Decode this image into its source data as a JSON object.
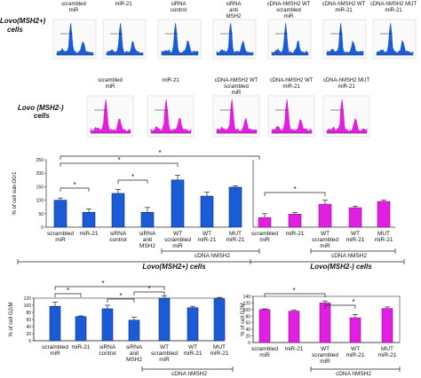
{
  "colors": {
    "blue": "#1a5bd6",
    "blue_dark": "#0b2a8a",
    "magenta": "#e11ee1",
    "magenta_dark": "#8a0a8a",
    "axis": "#333333"
  },
  "row_labels": {
    "lovo_pos": "Lovo(MSH2+)",
    "lovo_pos_sub": "cells",
    "lovo_neg": "Lovo (MSH2-)",
    "lovo_neg_sub": "cells"
  },
  "histograms_top": {
    "labels": [
      [
        "scrambled",
        "miR"
      ],
      [
        "miR-21",
        ""
      ],
      [
        "siRNA",
        "control"
      ],
      [
        "siRNA",
        "anti",
        "MSH2"
      ],
      [
        "cDNA-hMSH2 WT",
        "scrambled",
        "miR"
      ],
      [
        "cDNA-hMSH2 WT",
        "miR-21"
      ],
      [
        "cDNA-hMSH2 MUT",
        "miR-21"
      ]
    ]
  },
  "histograms_mid": {
    "labels": [
      [
        "scrambled",
        "miR"
      ],
      [
        "miR-21",
        ""
      ],
      [
        "cDNA-hMSH2 WT",
        "scrambled",
        "miR"
      ],
      [
        "cDNA-hMSH2 WT",
        "miR-21"
      ],
      [
        "cDNA-hMSH2 MUT",
        "miR-21"
      ]
    ]
  },
  "bands": {
    "cdna_label_1": "cDNA hMSH2",
    "cdna_label_2": "cDNA hMSH2",
    "lovo_pos_band": "Lovo(MSH2+) cells",
    "lovo_neg_band": "Lovo(MSH2-)  cells",
    "cdna_label_3": "cDNA hMSH2",
    "cdna_label_4": "cDNA hMSH2"
  },
  "sig_mark": "*",
  "chart_data": [
    {
      "type": "bar",
      "ylabel": "% of cell sub-G0/1",
      "ylim": [
        0,
        250
      ],
      "yticks": [
        "0",
        "50",
        "100",
        "150",
        "200",
        "250"
      ],
      "categories": [
        [
          "scrambled",
          "miR"
        ],
        [
          "miR-21"
        ],
        [
          "siRNA",
          "control"
        ],
        [
          "siRNA",
          "anti",
          "MSH2"
        ],
        [
          "WT",
          "scrambled",
          "miR"
        ],
        [
          "WT",
          "miR-21"
        ],
        [
          "MUT",
          "miR-21"
        ]
      ],
      "values": [
        100,
        55,
        125,
        55,
        175,
        115,
        148
      ],
      "errors": [
        8,
        12,
        15,
        18,
        18,
        15,
        5
      ]
    },
    {
      "type": "bar",
      "ylim": [
        0,
        250
      ],
      "categories": [
        [
          "scrambled",
          "miR"
        ],
        [
          "miR-21"
        ],
        [
          "WT",
          "scrambled",
          "miR"
        ],
        [
          "WT",
          "miR-21"
        ],
        [
          "MUT",
          "miR-21"
        ]
      ],
      "values": [
        35,
        48,
        85,
        72,
        95
      ],
      "errors": [
        15,
        6,
        15,
        6,
        5
      ]
    },
    {
      "type": "bar",
      "ylabel": "% of cell G2/M",
      "ylim": [
        0,
        120
      ],
      "yticks": [
        "0",
        "20",
        "40",
        "60",
        "80",
        "100",
        "120"
      ],
      "categories": [
        [
          "scrambled",
          "miR"
        ],
        [
          "miR-21"
        ],
        [
          "siRNA",
          "control"
        ],
        [
          "siRNA",
          "anti",
          "MSH2"
        ],
        [
          "WT",
          "scrambled",
          "miR"
        ],
        [
          "WT",
          "miR-21"
        ],
        [
          "MUT",
          "miR-21"
        ]
      ],
      "values": [
        97,
        68,
        90,
        58,
        120,
        93,
        118
      ],
      "errors": [
        12,
        2,
        10,
        8,
        6,
        4,
        4
      ]
    },
    {
      "type": "bar",
      "ylabel": "% of cell G2M",
      "ylim": [
        0,
        140
      ],
      "yticks": [
        "0",
        "20",
        "40",
        "60",
        "80",
        "100",
        "120",
        "140"
      ],
      "categories": [
        [
          "scrambled",
          "miR"
        ],
        [
          "miR-21"
        ],
        [
          "WT",
          "scrambled",
          "miR"
        ],
        [
          "WT",
          "miR-21"
        ],
        [
          "MUT",
          "miR-21"
        ]
      ],
      "values": [
        100,
        95,
        120,
        75,
        103
      ],
      "errors": [
        2,
        3,
        6,
        10,
        5
      ]
    }
  ]
}
